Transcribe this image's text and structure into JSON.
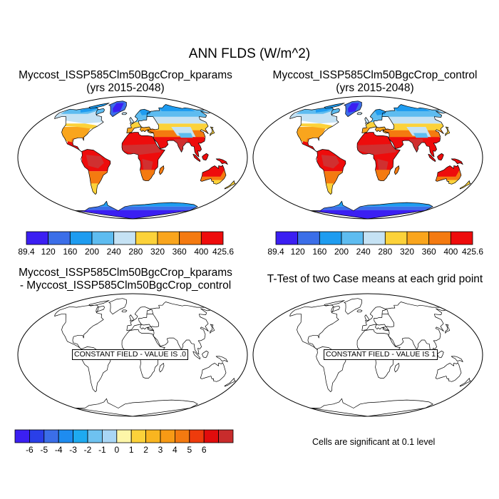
{
  "figure": {
    "title": "ANN FLDS (W/m^2)"
  },
  "panels": [
    {
      "id": "p1",
      "title_line1": "Myccost_ISSP585Clm50BgcCrop_kparams",
      "title_line2": "(yrs 2015-2048)"
    },
    {
      "id": "p2",
      "title_line1": "Myccost_ISSP585Clm50BgcCrop_control",
      "title_line2": "(yrs 2015-2048)"
    },
    {
      "id": "p3",
      "title_line1": "Myccost_ISSP585Clm50BgcCrop_kparams",
      "title_line2": "- Myccost_ISSP585Clm50BgcCrop_control",
      "field_label": "CONSTANT FIELD - VALUE IS .0"
    },
    {
      "id": "p4",
      "title_line1": "T-Test of two Case means at each grid point",
      "field_label": "CONSTANT FIELD - VALUE IS 1",
      "note": "Cells are significant at 0.1 level"
    }
  ],
  "colorbars": {
    "flds": {
      "labels": [
        "89.4",
        "120",
        "160",
        "200",
        "240",
        "280",
        "320",
        "360",
        "400",
        "425.6"
      ],
      "colors": [
        "#3b1ff2",
        "#3b6ee8",
        "#1e9cf0",
        "#5ebcf0",
        "#c5e2f4",
        "#fcd23a",
        "#f9a51d",
        "#f47a10",
        "#ee0c0c",
        "#d03030"
      ]
    },
    "diff": {
      "labels": [
        "-6",
        "-5",
        "-4",
        "-3",
        "-2",
        "-1",
        "0",
        "1",
        "2",
        "3",
        "4",
        "5",
        "6"
      ],
      "colors": [
        "#3b1ff2",
        "#2a3fe8",
        "#3b6ee8",
        "#1e8cf0",
        "#1eaaf0",
        "#6ec2f0",
        "#a9d6f5",
        "#fdf6a8",
        "#fcd23a",
        "#f9b520",
        "#f79a15",
        "#f47a10",
        "#ee3b0c",
        "#e10c0c",
        "#c82c2c"
      ]
    }
  }
}
